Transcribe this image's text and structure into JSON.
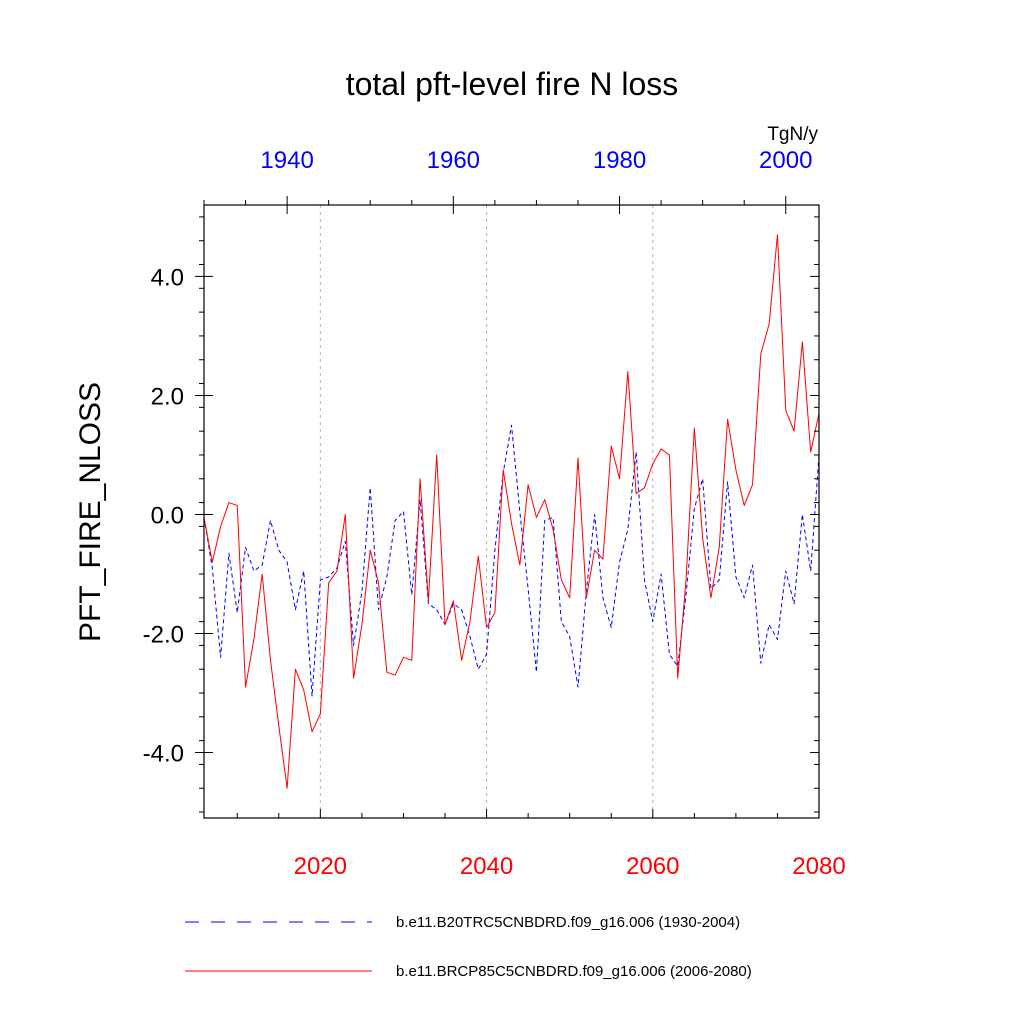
{
  "chart_data": {
    "type": "line",
    "title": "total pft-level fire N loss",
    "units": "TgN/y",
    "ylabel": "PFT_FIRE_NLOSS",
    "ylim": [
      -5.1,
      5.2
    ],
    "y_ticks": [
      -4.0,
      -2.0,
      0.0,
      2.0,
      4.0
    ],
    "y_tick_labels": [
      "-4.0",
      "-2.0",
      "0.0",
      "2.0",
      "4.0"
    ],
    "x_bottom": {
      "range": [
        2006,
        2080
      ],
      "ticks": [
        2020,
        2040,
        2060,
        2080
      ],
      "tick_labels": [
        "2020",
        "2040",
        "2060",
        "2080"
      ],
      "color": "#ff0000"
    },
    "x_top": {
      "range": [
        1930,
        2004
      ],
      "ticks": [
        1940,
        1960,
        1980,
        2000
      ],
      "tick_labels": [
        "1940",
        "1960",
        "1980",
        "2000"
      ],
      "color": "#0000ff"
    },
    "series": [
      {
        "name": "b.e11.B20TRC5CNBDRD.f09_g16.006 (1930-2004)",
        "axis": "top",
        "color": "#0000ff",
        "dash": "dashed",
        "x_start": 1930,
        "values": [
          -0.05,
          -0.9,
          -2.4,
          -0.65,
          -1.65,
          -0.55,
          -0.95,
          -0.85,
          -0.1,
          -0.6,
          -0.8,
          -1.6,
          -0.95,
          -3.05,
          -1.1,
          -1.05,
          -0.9,
          -0.45,
          -2.2,
          -1.3,
          0.45,
          -1.6,
          -1.05,
          -0.1,
          0.05,
          -1.35,
          0.25,
          -1.5,
          -1.6,
          -1.85,
          -1.5,
          -1.6,
          -2.05,
          -2.6,
          -2.35,
          -0.6,
          0.7,
          1.5,
          0.05,
          -1.25,
          -2.65,
          -0.1,
          -0.05,
          -1.8,
          -2.05,
          -2.9,
          -1.3,
          0.0,
          -1.4,
          -1.9,
          -0.8,
          -0.25,
          1.05,
          -1.1,
          -1.8,
          -1.0,
          -2.35,
          -2.55,
          -1.35,
          0.1,
          0.6,
          -1.25,
          -1.1,
          0.55,
          -1.05,
          -1.4,
          -0.85,
          -2.5,
          -1.85,
          -2.1,
          -0.95,
          -1.5,
          0.0,
          -0.95,
          1.0
        ]
      },
      {
        "name": "b.e11.BRCP85C5CNBDRD.f09_g16.006 (2006-2080)",
        "axis": "bottom",
        "color": "#ff0000",
        "dash": "solid",
        "x_start": 2006,
        "values": [
          -0.05,
          -0.8,
          -0.2,
          0.2,
          0.15,
          -2.9,
          -2.1,
          -1.0,
          -2.45,
          -3.55,
          -4.6,
          -2.6,
          -2.95,
          -3.65,
          -3.35,
          -1.15,
          -0.95,
          0.0,
          -2.75,
          -1.85,
          -0.6,
          -1.15,
          -2.65,
          -2.7,
          -2.4,
          -2.45,
          0.6,
          -1.45,
          1.0,
          -1.85,
          -1.45,
          -2.45,
          -1.8,
          -0.7,
          -1.9,
          -1.65,
          0.75,
          -0.15,
          -0.85,
          0.5,
          -0.05,
          0.25,
          -0.25,
          -1.1,
          -1.4,
          0.95,
          -1.4,
          -0.6,
          -0.75,
          1.15,
          0.6,
          2.4,
          0.35,
          0.45,
          0.85,
          1.1,
          1.0,
          -2.75,
          -1.1,
          1.45,
          -0.4,
          -1.4,
          -0.55,
          1.6,
          0.75,
          0.15,
          0.5,
          2.7,
          3.2,
          4.7,
          1.75,
          1.4,
          2.9,
          1.05,
          1.7
        ]
      }
    ],
    "legend_position": "bottom",
    "grid": "vertical dotted lines at major bottom ticks"
  }
}
